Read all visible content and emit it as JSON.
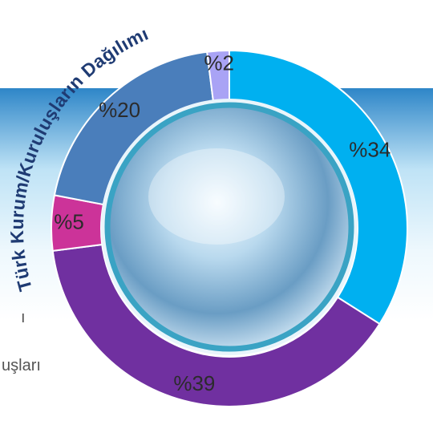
{
  "chart_data": {
    "type": "donut",
    "title": "Türk Kurum/Kuruluşların Dağılımı",
    "values": [
      34,
      39,
      5,
      20,
      2
    ],
    "value_labels": [
      "%34",
      "%39",
      "%5",
      "%20",
      "%2"
    ],
    "colors": [
      "#00b0f0",
      "#7030a0",
      "#cc3399",
      "#4a7ebb",
      "#a9a3f5"
    ]
  },
  "background_texts": [
    "ı",
    "uşları"
  ]
}
